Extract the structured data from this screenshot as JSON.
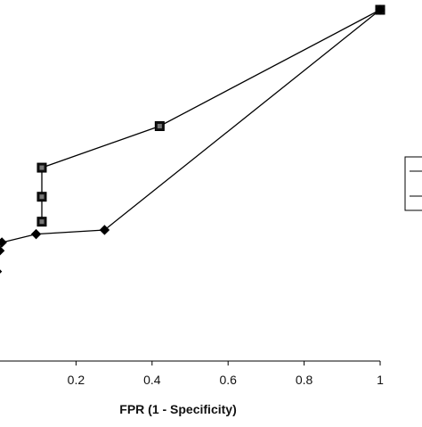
{
  "chart_data": {
    "type": "line",
    "title": "",
    "xlabel": "FPR (1 - Specificity)",
    "ylabel": "",
    "xlim": [
      0,
      1
    ],
    "x_tick_labels": [
      "0.2",
      "0.4",
      "0.6",
      "0.8",
      "1"
    ],
    "x_ticks": [
      0.2,
      0.4,
      0.6,
      0.8,
      1.0
    ],
    "grid": false,
    "legend": "right (partially visible, entries cropped)",
    "series": [
      {
        "marker": "square",
        "points": [
          [
            0.11,
            0.49
          ],
          [
            0.11,
            0.55
          ],
          [
            0.11,
            0.62
          ],
          [
            0.42,
            0.72
          ],
          [
            1.0,
            1.0
          ]
        ]
      },
      {
        "marker": "diamond",
        "points": [
          [
            -0.008,
            0.37
          ],
          [
            -0.001,
            0.42
          ],
          [
            0.005,
            0.44
          ],
          [
            0.095,
            0.46
          ],
          [
            0.275,
            0.47
          ],
          [
            1.0,
            1.0
          ]
        ]
      }
    ]
  }
}
